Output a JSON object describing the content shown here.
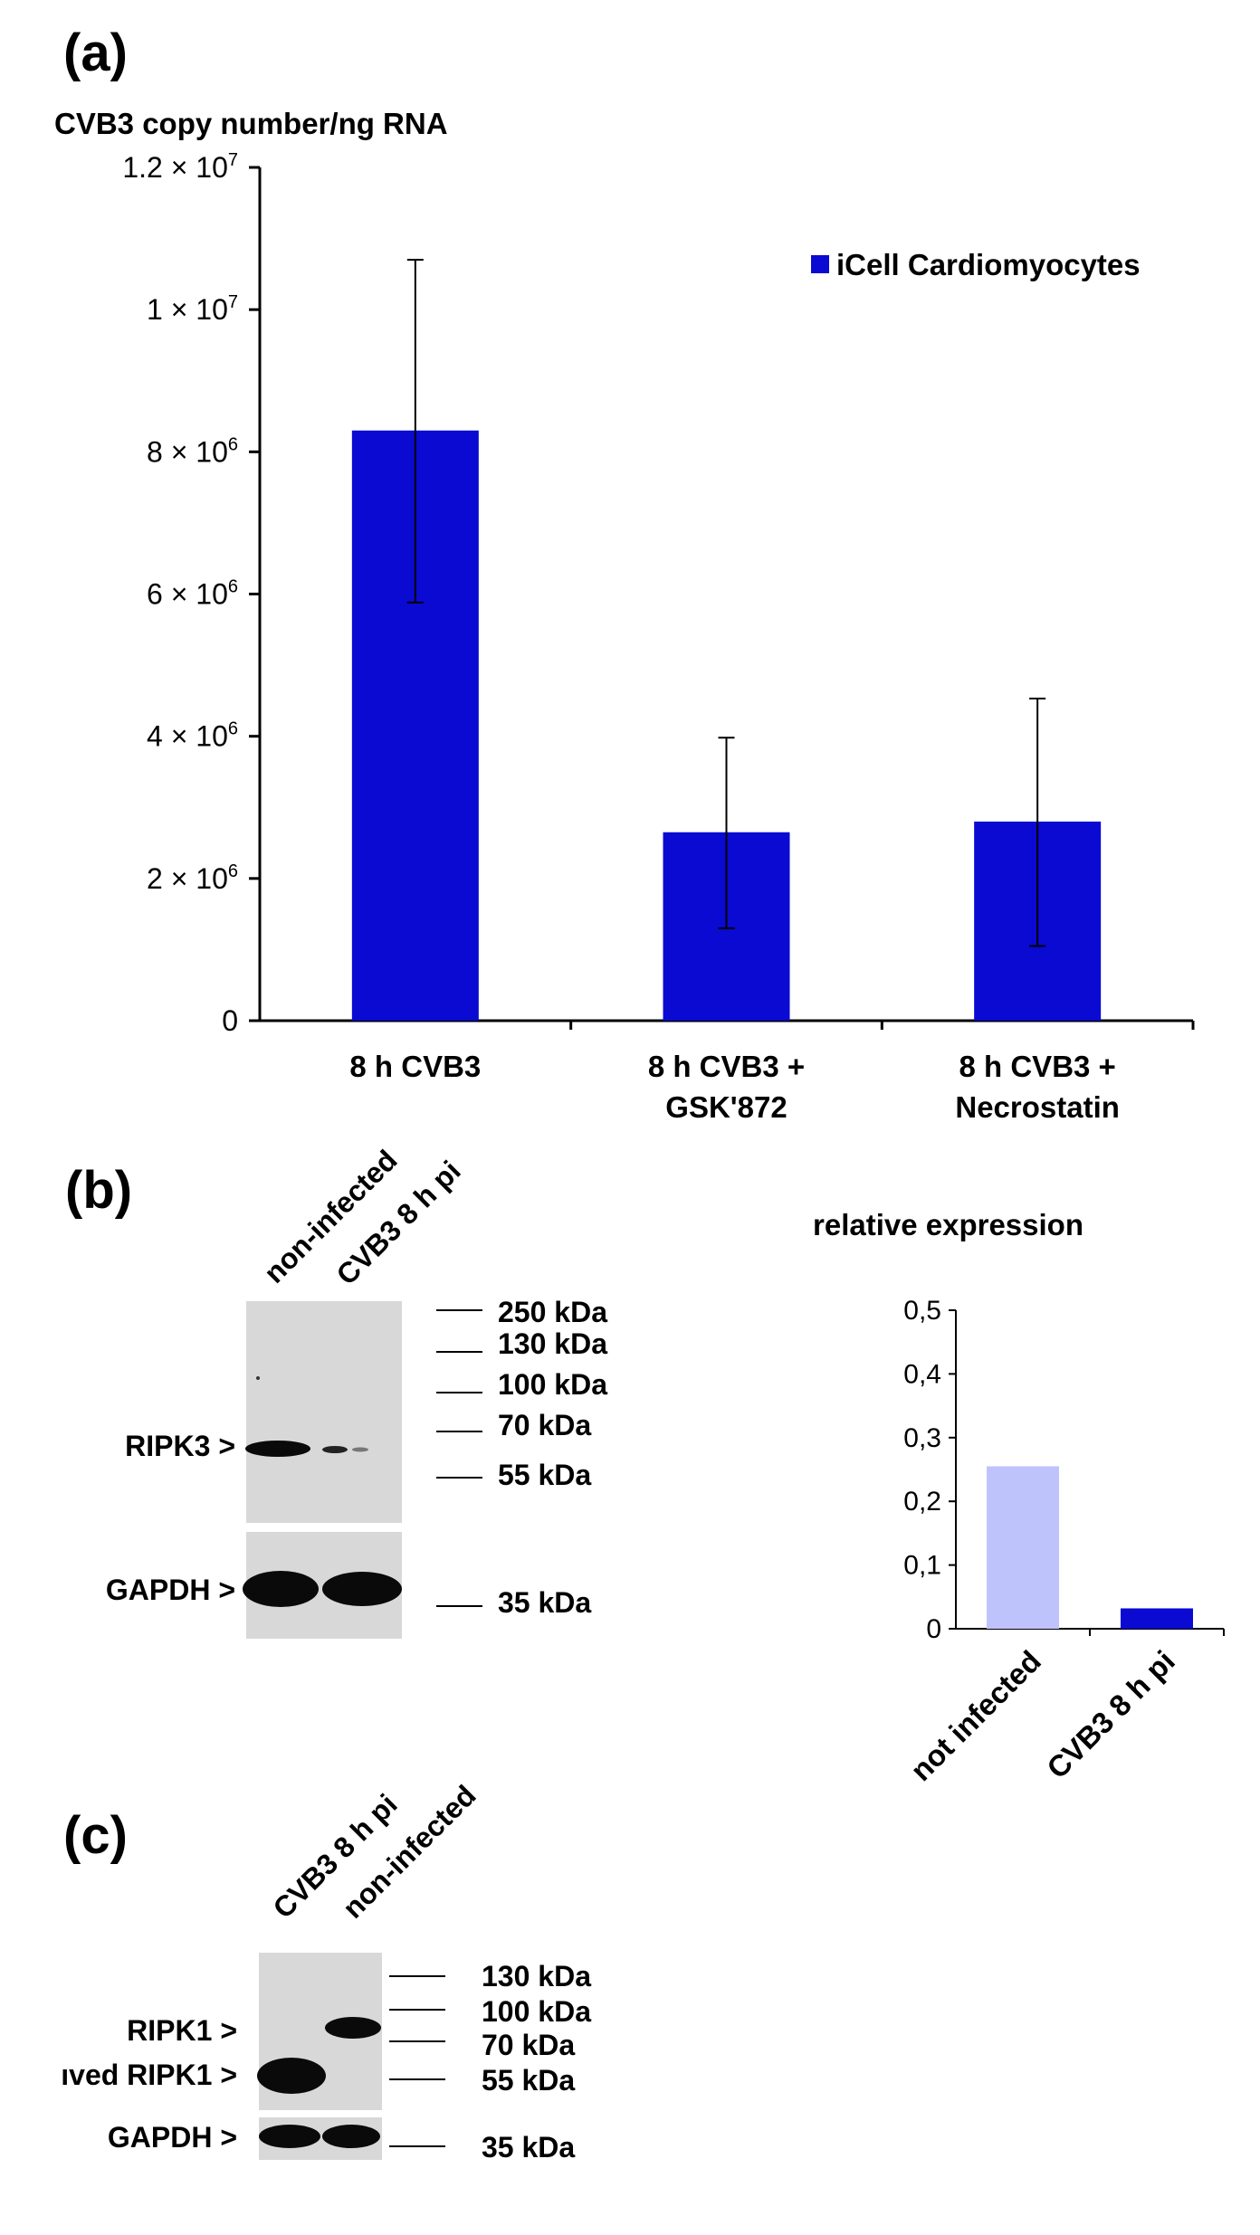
{
  "panels": {
    "a_label": "(a)",
    "b_label": "(b)",
    "c_label": "(c)"
  },
  "colors": {
    "bar_dark": "#0a0ad2",
    "bar_light": "#bfc3fb",
    "blot_bg": "#d8d8d8",
    "band": "#0a0a0a"
  },
  "chart_data": [
    {
      "type": "bar",
      "title": "CVB3 copy number/ng RNA",
      "categories": [
        [
          "8 h CVB3"
        ],
        [
          "8 h CVB3 +",
          "GSK'872"
        ],
        [
          "8 h CVB3 +",
          "Necrostatin"
        ]
      ],
      "series": [
        {
          "name": "iCell Cardiomyocytes",
          "values": [
            8300000,
            2650000,
            2800000
          ],
          "error_low": [
            5880000,
            1300000,
            1050000
          ],
          "error_high": [
            10700000,
            3980000,
            4530000
          ]
        }
      ],
      "ylim": [
        0,
        12000000
      ],
      "yticks": [
        {
          "base": "0",
          "exp": ""
        },
        {
          "base": "2 × 10",
          "exp": "6"
        },
        {
          "base": "4 × 10",
          "exp": "6"
        },
        {
          "base": "6 × 10",
          "exp": "6"
        },
        {
          "base": "8 × 10",
          "exp": "6"
        },
        {
          "base": "1 × 10",
          "exp": "7"
        },
        {
          "base": "1.2 × 10",
          "exp": "7"
        }
      ],
      "legend": "top-right"
    },
    {
      "type": "bar",
      "title": "relative expression",
      "categories": [
        "not infected",
        "CVB3 8 h pi"
      ],
      "values": [
        0.255,
        0.032
      ],
      "ylim": [
        0,
        0.5
      ],
      "yticks": [
        "0",
        "0,1",
        "0,2",
        "0,3",
        "0,4",
        "0,5"
      ]
    }
  ],
  "blot_b": {
    "lanes": [
      "non-infected",
      "CVB3 8 h pi"
    ],
    "markers": [
      "250 kDa",
      "130 kDa",
      "100 kDa",
      "70 kDa",
      "55 kDa",
      "35 kDa"
    ],
    "labels": [
      "RIPK3 >",
      "GAPDH >"
    ]
  },
  "blot_c": {
    "lanes": [
      "CVB3 8 h pi",
      "non-infected"
    ],
    "markers": [
      "130 kDa",
      "100 kDa",
      "70 kDa",
      "55 kDa",
      "35 kDa"
    ],
    "labels": [
      "RIPK1 >",
      "ıved RIPK1 >",
      "GAPDH >"
    ]
  }
}
